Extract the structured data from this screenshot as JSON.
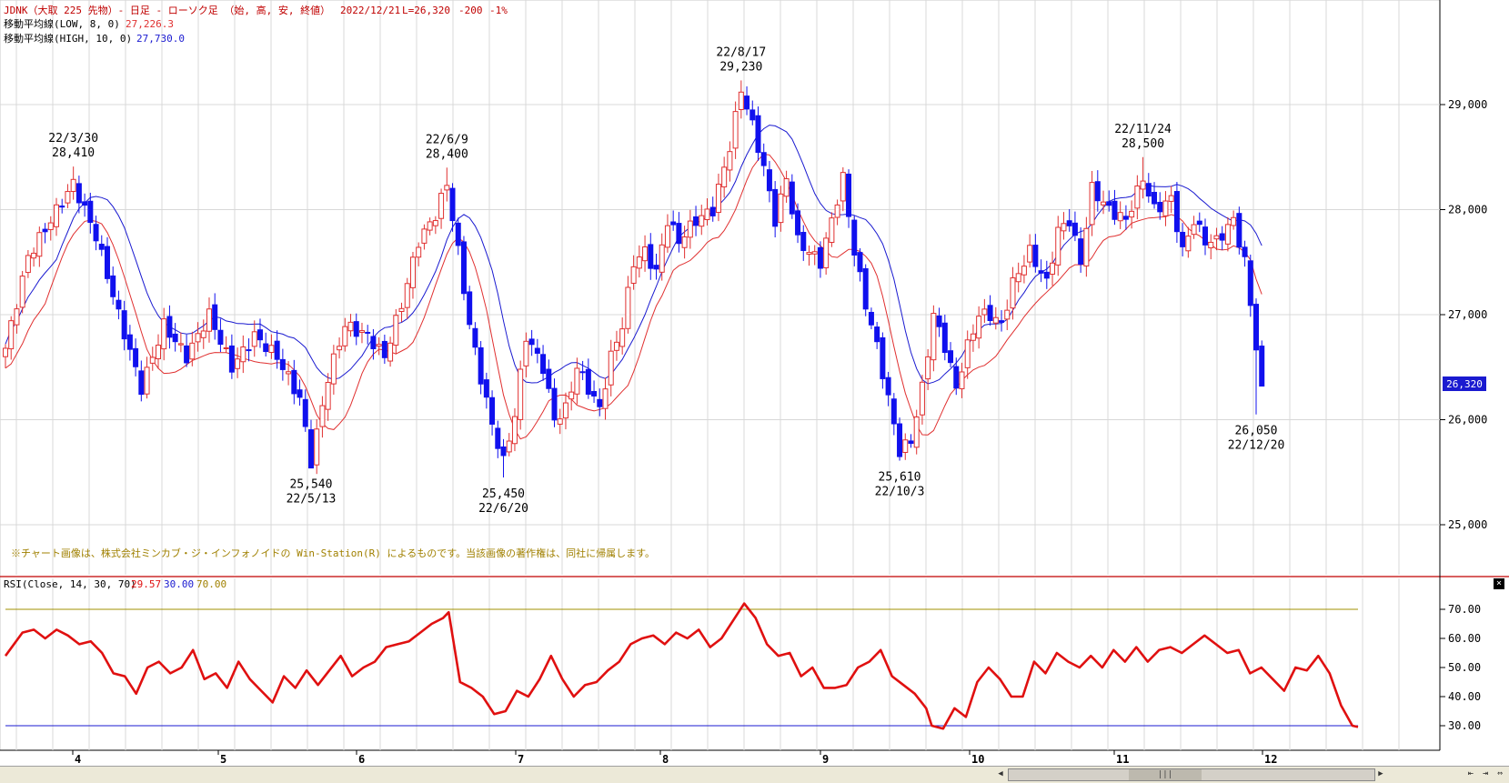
{
  "header": {
    "title": "JDNK（大取 225 先物）- 日足 - ローソク足 （始, 高, 安, 終値）",
    "date": "2022/12/21",
    "last": "L=26,320",
    "change": "-200",
    "change_pct": "-1%",
    "ma_low_label": "移動平均線(LOW, 8, 0)",
    "ma_low_value": "27,226.3",
    "ma_high_label": "移動平均線(HIGH, 10, 0)",
    "ma_high_value": "27,730.0"
  },
  "copyright": "※チャート画像は、株式会社ミンカブ・ジ・インフォノイドの Win-Station(R) によるものです。当該画像の著作権は、同社に帰属します。",
  "rsi_header": {
    "label": "RSI(Close, 14, 30, 70)",
    "value": "29.57",
    "low": "30.00",
    "high": "70.00"
  },
  "price_tag": "26,320",
  "colors": {
    "up": "#e03030",
    "down": "#1010ee",
    "ma_low": "#e03030",
    "ma_high": "#1a1ad0",
    "rsi": "#e01010",
    "upper_band": "#a09000",
    "lower_band": "#1a1ad0",
    "grid": "#d8d8d8",
    "separator": "#c00000",
    "tag_bg": "#1a1ad0"
  },
  "chart_data": [
    {
      "type": "candlestick",
      "title": "JDNK（大取 225 先物）- 日足 - ローソク足 （始, 高, 安, 終値）",
      "ylim": [
        24650,
        29850
      ],
      "yticks": [
        "25,000",
        "26,000",
        "27,000",
        "28,000",
        "29,000"
      ],
      "ytick_values": [
        25000,
        26000,
        27000,
        28000,
        29000
      ],
      "month_labels": [
        "4",
        "5",
        "6",
        "7",
        "8",
        "9",
        "10",
        "11",
        "12"
      ],
      "close_series": [
        [
          0,
          26680
        ],
        [
          4,
          27550
        ],
        [
          8,
          27900
        ],
        [
          12,
          28250
        ],
        [
          16,
          27750
        ],
        [
          20,
          27000
        ],
        [
          24,
          26300
        ],
        [
          28,
          26900
        ],
        [
          32,
          26600
        ],
        [
          36,
          27000
        ],
        [
          40,
          26500
        ],
        [
          44,
          26800
        ],
        [
          48,
          26600
        ],
        [
          52,
          26200
        ],
        [
          54,
          25600
        ],
        [
          57,
          26400
        ],
        [
          60,
          26900
        ],
        [
          64,
          26800
        ],
        [
          67,
          26600
        ],
        [
          70,
          27100
        ],
        [
          73,
          27700
        ],
        [
          76,
          27950
        ],
        [
          78,
          28250
        ],
        [
          80,
          27600
        ],
        [
          82,
          26900
        ],
        [
          84,
          26400
        ],
        [
          86,
          25950
        ],
        [
          88,
          25600
        ],
        [
          90,
          26050
        ],
        [
          92,
          26800
        ],
        [
          95,
          26500
        ],
        [
          97,
          26000
        ],
        [
          99,
          26100
        ],
        [
          101,
          26500
        ],
        [
          103,
          26300
        ],
        [
          105,
          26100
        ],
        [
          107,
          26600
        ],
        [
          109,
          26900
        ],
        [
          111,
          27500
        ],
        [
          113,
          27600
        ],
        [
          115,
          27400
        ],
        [
          117,
          27900
        ],
        [
          119,
          27700
        ],
        [
          122,
          27900
        ],
        [
          125,
          28000
        ],
        [
          128,
          28600
        ],
        [
          130,
          29150
        ],
        [
          132,
          28800
        ],
        [
          134,
          28400
        ],
        [
          136,
          27900
        ],
        [
          138,
          28300
        ],
        [
          140,
          27700
        ],
        [
          142,
          27600
        ],
        [
          144,
          27500
        ],
        [
          146,
          27900
        ],
        [
          148,
          28300
        ],
        [
          150,
          27600
        ],
        [
          152,
          27100
        ],
        [
          154,
          26700
        ],
        [
          156,
          26200
        ],
        [
          158,
          25700
        ],
        [
          160,
          25800
        ],
        [
          162,
          26300
        ],
        [
          164,
          27000
        ],
        [
          166,
          26700
        ],
        [
          168,
          26300
        ],
        [
          170,
          26700
        ],
        [
          172,
          27000
        ],
        [
          174,
          27000
        ],
        [
          176,
          26900
        ],
        [
          178,
          27300
        ],
        [
          181,
          27600
        ],
        [
          184,
          27300
        ],
        [
          186,
          27800
        ],
        [
          188,
          27900
        ],
        [
          190,
          27500
        ],
        [
          192,
          28200
        ],
        [
          195,
          28000
        ],
        [
          198,
          27900
        ],
        [
          201,
          28300
        ],
        [
          203,
          28000
        ],
        [
          206,
          28100
        ],
        [
          208,
          27600
        ],
        [
          210,
          27900
        ],
        [
          212,
          27700
        ],
        [
          214,
          27700
        ],
        [
          217,
          27900
        ],
        [
          219,
          27500
        ],
        [
          221,
          26700
        ],
        [
          222,
          26500
        ]
      ],
      "ohlc_note": "daily OHLC candles, range Mar 2022 – Dec 21 2022",
      "series": [
        {
          "name": "移動平均線(LOW, 8, 0)",
          "last": 27226.3
        },
        {
          "name": "移動平均線(HIGH, 10, 0)",
          "last": 27730.0
        }
      ],
      "annotations": [
        {
          "date": "22/3/30",
          "value": "28,410",
          "price": 28410,
          "index": 12,
          "pos": "above"
        },
        {
          "date": "22/5/13",
          "value": "25,540",
          "price": 25540,
          "index": 54,
          "pos": "below"
        },
        {
          "date": "22/6/9",
          "value": "28,400",
          "price": 28400,
          "index": 78,
          "pos": "above"
        },
        {
          "date": "22/6/20",
          "value": "25,450",
          "price": 25450,
          "index": 88,
          "pos": "below"
        },
        {
          "date": "22/8/17",
          "value": "29,230",
          "price": 29230,
          "index": 130,
          "pos": "above"
        },
        {
          "date": "22/10/3",
          "value": "25,610",
          "price": 25610,
          "index": 158,
          "pos": "below"
        },
        {
          "date": "22/11/24",
          "value": "28,500",
          "price": 28500,
          "index": 201,
          "pos": "above"
        },
        {
          "date": "22/12/20",
          "value": "26,050",
          "price": 26050,
          "index": 221,
          "pos": "below"
        }
      ],
      "last_price": 26320
    },
    {
      "type": "line",
      "title": "RSI(Close, 14, 30, 70)",
      "ylim": [
        25,
        75
      ],
      "yticks": [
        "30.00",
        "40.00",
        "50.00",
        "60.00",
        "70.00"
      ],
      "ytick_values": [
        30,
        40,
        50,
        60,
        70
      ],
      "bands": [
        30,
        70
      ],
      "series": [
        {
          "name": "RSI",
          "points": [
            [
              0,
              54
            ],
            [
              3,
              62
            ],
            [
              5,
              63
            ],
            [
              7,
              60
            ],
            [
              9,
              63
            ],
            [
              11,
              61
            ],
            [
              13,
              58
            ],
            [
              15,
              59
            ],
            [
              17,
              55
            ],
            [
              19,
              48
            ],
            [
              21,
              47
            ],
            [
              23,
              41
            ],
            [
              25,
              50
            ],
            [
              27,
              52
            ],
            [
              29,
              48
            ],
            [
              31,
              50
            ],
            [
              33,
              56
            ],
            [
              35,
              46
            ],
            [
              37,
              48
            ],
            [
              39,
              43
            ],
            [
              41,
              52
            ],
            [
              43,
              46
            ],
            [
              45,
              42
            ],
            [
              47,
              38
            ],
            [
              49,
              47
            ],
            [
              51,
              43
            ],
            [
              53,
              49
            ],
            [
              55,
              44
            ],
            [
              57,
              49
            ],
            [
              59,
              54
            ],
            [
              61,
              47
            ],
            [
              63,
              50
            ],
            [
              65,
              52
            ],
            [
              67,
              57
            ],
            [
              69,
              58
            ],
            [
              71,
              59
            ],
            [
              73,
              62
            ],
            [
              75,
              65
            ],
            [
              77,
              67
            ],
            [
              78,
              69
            ],
            [
              80,
              45
            ],
            [
              82,
              43
            ],
            [
              84,
              40
            ],
            [
              86,
              34
            ],
            [
              88,
              35
            ],
            [
              90,
              42
            ],
            [
              92,
              40
            ],
            [
              94,
              46
            ],
            [
              96,
              54
            ],
            [
              98,
              46
            ],
            [
              100,
              40
            ],
            [
              102,
              44
            ],
            [
              104,
              45
            ],
            [
              106,
              49
            ],
            [
              108,
              52
            ],
            [
              110,
              58
            ],
            [
              112,
              60
            ],
            [
              114,
              61
            ],
            [
              116,
              58
            ],
            [
              118,
              62
            ],
            [
              120,
              60
            ],
            [
              122,
              63
            ],
            [
              124,
              57
            ],
            [
              126,
              60
            ],
            [
              128,
              66
            ],
            [
              130,
              72
            ],
            [
              132,
              67
            ],
            [
              134,
              58
            ],
            [
              136,
              54
            ],
            [
              138,
              55
            ],
            [
              140,
              47
            ],
            [
              142,
              50
            ],
            [
              144,
              43
            ],
            [
              146,
              43
            ],
            [
              148,
              44
            ],
            [
              150,
              50
            ],
            [
              152,
              52
            ],
            [
              154,
              56
            ],
            [
              156,
              47
            ],
            [
              158,
              44
            ],
            [
              160,
              41
            ],
            [
              162,
              36
            ],
            [
              163,
              30
            ],
            [
              165,
              29
            ],
            [
              167,
              36
            ],
            [
              169,
              33
            ],
            [
              171,
              45
            ],
            [
              173,
              50
            ],
            [
              175,
              46
            ],
            [
              177,
              40
            ],
            [
              179,
              40
            ],
            [
              181,
              52
            ],
            [
              183,
              48
            ],
            [
              185,
              55
            ],
            [
              187,
              52
            ],
            [
              189,
              50
            ],
            [
              191,
              54
            ],
            [
              193,
              50
            ],
            [
              195,
              56
            ],
            [
              197,
              52
            ],
            [
              199,
              57
            ],
            [
              201,
              52
            ],
            [
              203,
              56
            ],
            [
              205,
              57
            ],
            [
              207,
              55
            ],
            [
              209,
              58
            ],
            [
              211,
              61
            ],
            [
              213,
              58
            ],
            [
              215,
              55
            ],
            [
              217,
              56
            ],
            [
              219,
              48
            ],
            [
              221,
              50
            ],
            [
              223,
              46
            ],
            [
              225,
              42
            ],
            [
              227,
              50
            ],
            [
              229,
              49
            ],
            [
              231,
              54
            ],
            [
              233,
              48
            ],
            [
              235,
              37
            ],
            [
              237,
              30
            ],
            [
              238,
              29.57
            ]
          ]
        }
      ]
    }
  ]
}
